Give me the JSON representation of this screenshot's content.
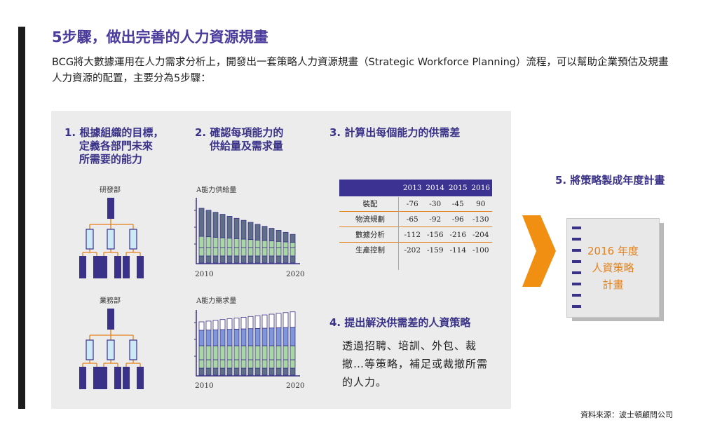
{
  "title": "5步驟，做出完善的人力資源規畫",
  "intro": "BCG將大數據運用在人力需求分析上，開發出一套策略人力資源規畫（Strategic Workforce Planning）流程，可以幫助企業預估及規畫人力資源的配置，主要分為5步驟：",
  "steps": {
    "s1": "1. 根據組織的目標，\n    定義各部門未來\n    所需要的能力",
    "s2": "2. 確認每項能力的\n    供給量及需求量",
    "s3": "3. 計算出每個能力的供需差",
    "s4": "4. 提出解決供需差的人資策略",
    "s5": "5. 將策略製成年度計畫"
  },
  "org": {
    "dept1": "研發部",
    "dept2": "業務部"
  },
  "supply_chart": {
    "label": "A能力供給量",
    "x_start": "2010",
    "x_end": "2020"
  },
  "demand_chart": {
    "label": "A能力需求量",
    "x_start": "2010",
    "x_end": "2020"
  },
  "gap_table": {
    "years": [
      "2013",
      "2014",
      "2015",
      "2016"
    ],
    "rows": [
      {
        "role": "裝配",
        "values": [
          "-76",
          "-30",
          "-45",
          "90"
        ]
      },
      {
        "role": "物流規劃",
        "values": [
          "-65",
          "-92",
          "-96",
          "-130"
        ]
      },
      {
        "role": "數據分析",
        "values": [
          "-112",
          "-156",
          "-216",
          "-204"
        ]
      },
      {
        "role": "生產控制",
        "values": [
          "-202",
          "-159",
          "-114",
          "-100"
        ]
      }
    ]
  },
  "step4_body": "透過招聘、培訓、外包、裁撤…等策略，補足或裁撤所需的人力。",
  "plan": {
    "line1": "2016 年度",
    "line2": "人資策略",
    "line3": "計畫"
  },
  "source": "資料來源：波士頓顧問公司",
  "colors": {
    "purple": "#3a3288",
    "orange": "#e5801a",
    "slate": "#5f6f86",
    "green": "#a8d8a0",
    "blue": "#7f97d8",
    "light_blue": "#cde9f6"
  }
}
